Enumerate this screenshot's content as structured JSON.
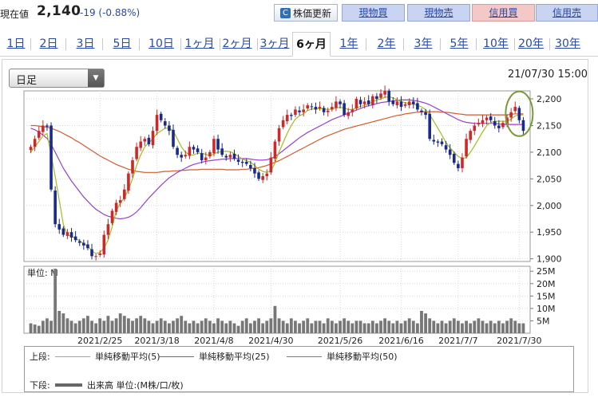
{
  "header": {
    "current_label": "現在値",
    "price": "2,140",
    "change": "-19 (-0.88%)",
    "refresh_label": "株価更新",
    "buttons": {
      "genbuy": "現物買",
      "gensell": "現物売",
      "marginbuy": "信用買",
      "marginsell": "信用売"
    }
  },
  "tabs": [
    "1日",
    "2日",
    "3日",
    "5日",
    "10日",
    "1ヶ月",
    "2ヶ月",
    "3ヶ月",
    "6ヶ月",
    "1年",
    "2年",
    "3年",
    "5年",
    "10年",
    "20年",
    "30年"
  ],
  "active_tab": "6ヶ月",
  "interval_select": {
    "value": "日足"
  },
  "chart_datetime": "21/07/30 15:00",
  "legend": {
    "upper_label": "上段:",
    "lower_label": "下段:",
    "ma5": "単純移動平均(5)",
    "ma25": "単純移動平均(25)",
    "ma50": "単純移動平均(50)",
    "volume": "出来高 単位:(M株/口/枚)"
  },
  "colors": {
    "up": "#cc2a2a",
    "down": "#1a2a8c",
    "ma5": "#9fbf1e",
    "ma25": "#9a3fd0",
    "ma50": "#d45a30",
    "volume": "#777777",
    "circle": "#7a9a3a"
  },
  "chart_data": [
    {
      "type": "candlestick",
      "y_ticks": [
        "2,200",
        "2,150",
        "2,100",
        "2,050",
        "2,000",
        "1,950",
        "1,900"
      ],
      "ylim": [
        1895,
        2215
      ],
      "x_ticks": [
        "2021/2/25",
        "2021/3/18",
        "2021/4/8",
        "2021/4/30",
        "2021/5/26",
        "2021/6/16",
        "2021/7/7",
        "2021/7/30"
      ],
      "x_tick_index": [
        17,
        31,
        45,
        59,
        76,
        91,
        105,
        120
      ],
      "closes": [
        2110,
        2125,
        2140,
        2150,
        2148,
        2030,
        1965,
        1955,
        1945,
        1950,
        1940,
        1935,
        1930,
        1925,
        1920,
        1905,
        1905,
        1910,
        1945,
        1965,
        1990,
        2005,
        2010,
        2030,
        2060,
        2085,
        2110,
        2120,
        2125,
        2115,
        2140,
        2170,
        2160,
        2150,
        2140,
        2110,
        2095,
        2090,
        2095,
        2110,
        2105,
        2100,
        2085,
        2090,
        2100,
        2125,
        2105,
        2095,
        2090,
        2095,
        2088,
        2082,
        2080,
        2078,
        2070,
        2060,
        2050,
        2055,
        2060,
        2090,
        2120,
        2145,
        2160,
        2170,
        2168,
        2180,
        2175,
        2180,
        2188,
        2185,
        2180,
        2185,
        2175,
        2178,
        2185,
        2195,
        2190,
        2170,
        2175,
        2180,
        2200,
        2190,
        2195,
        2190,
        2205,
        2200,
        2210,
        2215,
        2195,
        2190,
        2195,
        2185,
        2190,
        2195,
        2190,
        2180,
        2175,
        2170,
        2125,
        2120,
        2118,
        2115,
        2105,
        2095,
        2080,
        2070,
        2090,
        2125,
        2140,
        2150,
        2155,
        2160,
        2165,
        2160,
        2150,
        2145,
        2155,
        2165,
        2175,
        2185,
        2160,
        2140
      ],
      "ma5": [
        2100,
        2110,
        2120,
        2130,
        2135,
        2095,
        2055,
        2010,
        1965,
        1945,
        1942,
        1938,
        1934,
        1928,
        1924,
        1915,
        1910,
        1912,
        1920,
        1935,
        1960,
        1990,
        2005,
        2015,
        2030,
        2050,
        2075,
        2095,
        2110,
        2118,
        2125,
        2135,
        2140,
        2145,
        2145,
        2140,
        2125,
        2110,
        2100,
        2095,
        2095,
        2098,
        2098,
        2096,
        2093,
        2097,
        2100,
        2101,
        2102,
        2101,
        2097,
        2092,
        2087,
        2084,
        2081,
        2075,
        2068,
        2064,
        2062,
        2065,
        2080,
        2100,
        2118,
        2135,
        2150,
        2162,
        2168,
        2172,
        2178,
        2181,
        2181,
        2182,
        2181,
        2180,
        2181,
        2183,
        2184,
        2183,
        2180,
        2180,
        2183,
        2186,
        2188,
        2190,
        2195,
        2198,
        2200,
        2203,
        2204,
        2202,
        2198,
        2195,
        2193,
        2191,
        2190,
        2188,
        2185,
        2180,
        2170,
        2158,
        2145,
        2132,
        2118,
        2108,
        2100,
        2092,
        2088,
        2090,
        2100,
        2112,
        2125,
        2138,
        2150,
        2156,
        2158,
        2158,
        2158,
        2158,
        2162,
        2168,
        2170,
        2170
      ],
      "ma25": [
        2145,
        2142,
        2138,
        2132,
        2126,
        2115,
        2100,
        2085,
        2070,
        2058,
        2046,
        2036,
        2026,
        2016,
        2008,
        2000,
        1993,
        1988,
        1983,
        1980,
        1978,
        1976,
        1975,
        1976,
        1978,
        1982,
        1988,
        1996,
        2005,
        2014,
        2022,
        2030,
        2038,
        2045,
        2052,
        2057,
        2062,
        2066,
        2070,
        2074,
        2077,
        2079,
        2081,
        2083,
        2084,
        2085,
        2086,
        2087,
        2087,
        2088,
        2088,
        2088,
        2088,
        2088,
        2087,
        2086,
        2085,
        2085,
        2086,
        2088,
        2092,
        2097,
        2103,
        2109,
        2115,
        2121,
        2127,
        2132,
        2137,
        2141,
        2145,
        2149,
        2153,
        2157,
        2161,
        2164,
        2167,
        2170,
        2173,
        2176,
        2179,
        2182,
        2185,
        2187,
        2189,
        2191,
        2193,
        2194,
        2195,
        2196,
        2197,
        2198,
        2198,
        2198,
        2197,
        2196,
        2194,
        2192,
        2189,
        2185,
        2181,
        2177,
        2173,
        2169,
        2165,
        2161,
        2158,
        2156,
        2155,
        2154,
        2154,
        2154,
        2154,
        2154,
        2154,
        2153,
        2152,
        2152,
        2152,
        2152,
        2152,
        2152
      ],
      "ma50": [
        2150,
        2150,
        2149,
        2148,
        2147,
        2145,
        2142,
        2139,
        2135,
        2131,
        2127,
        2122,
        2118,
        2113,
        2108,
        2103,
        2098,
        2093,
        2089,
        2085,
        2081,
        2077,
        2074,
        2071,
        2068,
        2066,
        2064,
        2063,
        2062,
        2062,
        2062,
        2062,
        2063,
        2064,
        2064,
        2065,
        2065,
        2066,
        2066,
        2067,
        2067,
        2067,
        2068,
        2068,
        2068,
        2068,
        2068,
        2068,
        2067,
        2067,
        2067,
        2067,
        2068,
        2068,
        2069,
        2070,
        2071,
        2073,
        2075,
        2078,
        2081,
        2084,
        2088,
        2092,
        2096,
        2100,
        2104,
        2108,
        2112,
        2116,
        2120,
        2124,
        2128,
        2131,
        2134,
        2137,
        2140,
        2143,
        2145,
        2147,
        2149,
        2151,
        2153,
        2155,
        2157,
        2159,
        2161,
        2163,
        2165,
        2167,
        2169,
        2170,
        2172,
        2173,
        2174,
        2175,
        2176,
        2176,
        2176,
        2176,
        2176,
        2175,
        2175,
        2174,
        2173,
        2172,
        2171,
        2170,
        2170,
        2170,
        2170,
        2170,
        2170,
        2170,
        2170,
        2170,
        2170,
        2170,
        2171,
        2172,
        2172,
        2172
      ]
    },
    {
      "type": "bar",
      "title": "単位: M",
      "y_ticks": [
        "25M",
        "20M",
        "15M",
        "10M",
        "5M"
      ],
      "ylim": [
        0,
        27
      ],
      "volume": [
        4,
        3.5,
        3,
        5,
        6,
        5,
        26,
        9,
        8,
        6,
        5,
        4,
        5,
        6,
        7,
        5,
        4,
        6,
        5,
        7,
        5,
        6,
        8,
        7,
        6,
        5,
        6,
        7,
        6,
        5,
        4,
        5,
        6,
        5,
        4,
        5,
        6,
        7,
        5,
        4,
        5,
        4,
        5,
        6,
        5,
        4,
        6,
        5,
        4,
        5,
        4,
        3,
        5,
        6,
        4,
        5,
        6,
        4,
        5,
        6,
        11,
        6,
        5,
        4,
        6,
        5,
        4,
        5,
        6,
        4,
        5,
        5,
        4,
        6,
        5,
        4,
        5,
        6,
        5,
        4,
        5,
        5,
        4,
        4,
        5,
        4,
        5,
        6,
        5,
        4,
        5,
        4,
        5,
        6,
        5,
        4,
        9,
        8,
        6,
        5,
        4,
        5,
        4,
        5,
        6,
        5,
        4,
        5,
        4,
        5,
        6,
        5,
        4,
        5,
        4,
        5,
        4,
        5,
        6,
        5,
        4,
        4
      ]
    }
  ]
}
